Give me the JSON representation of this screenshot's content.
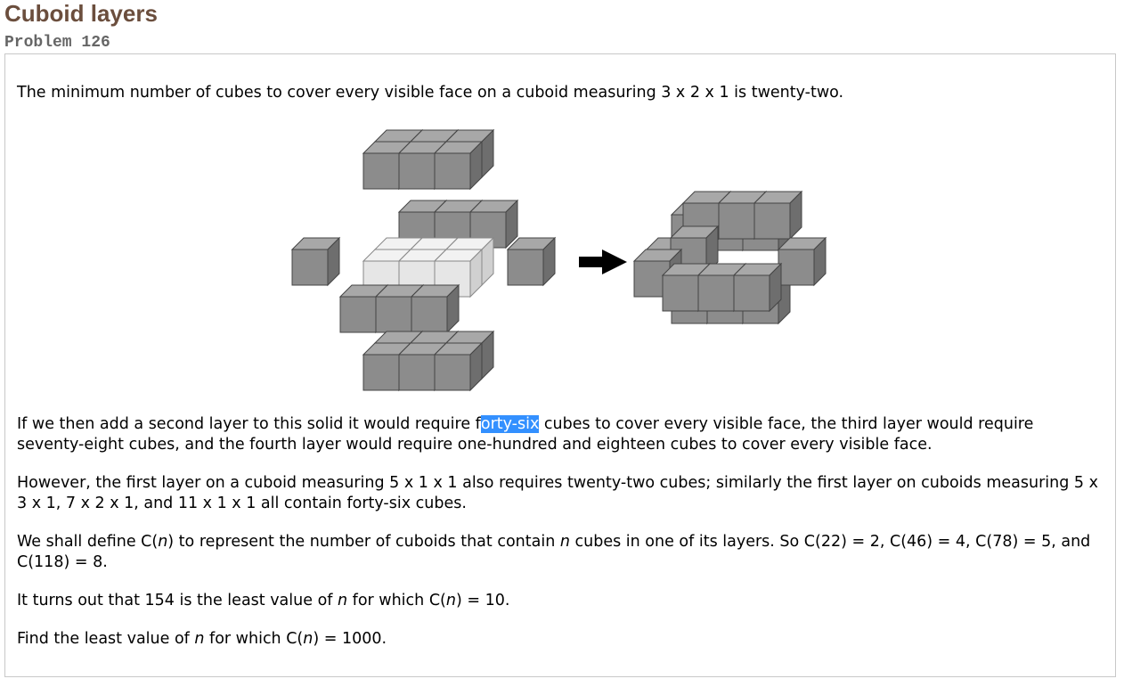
{
  "header": {
    "title": "Cuboid layers",
    "problem_label": "Problem 126"
  },
  "body": {
    "p1": "The minimum number of cubes to cover every visible face on a cuboid measuring 3 x 2 x 1 is twenty-two.",
    "p2_before": "If we then add a second layer to this solid it would require f",
    "p2_selected": "orty-six",
    "p2_after": " cubes to cover every visible face, the third layer would require seventy-eight cubes, and the fourth layer would require one-hundred and eighteen cubes to cover every visible face.",
    "p3": "However, the first layer on a cuboid measuring 5 x 1 x 1 also requires twenty-two cubes; similarly the first layer on cuboids measuring 5 x 3 x 1, 7 x 2 x 1, and 11 x 1 x 1 all contain forty-six cubes.",
    "p4_a": "We shall define C(",
    "p4_n1": "n",
    "p4_b": ") to represent the number of cuboids that contain ",
    "p4_n2": "n",
    "p4_c": " cubes in one of its layers. So C(22) = 2, C(46) = 4, C(78) = 5, and C(118) = 8.",
    "p5_a": "It turns out that 154 is the least value of ",
    "p5_n1": "n",
    "p5_b": " for which C(",
    "p5_n2": "n",
    "p5_c": ") = 10.",
    "p6_a": "Find the least value of ",
    "p6_n1": "n",
    "p6_b": " for which C(",
    "p6_n2": "n",
    "p6_c": ") = 1000."
  },
  "colors": {
    "title": "#6b4e3d",
    "cube_front": "#8c8c8c",
    "cube_top": "#a8a8a8",
    "cube_side": "#6e6e6e",
    "core_front": "#e6e6e6",
    "core_top": "#f2f2f2",
    "core_side": "#d0d0d0",
    "selection": "#3390ff"
  },
  "figure": {
    "arrow_icon": "right-arrow-icon"
  }
}
